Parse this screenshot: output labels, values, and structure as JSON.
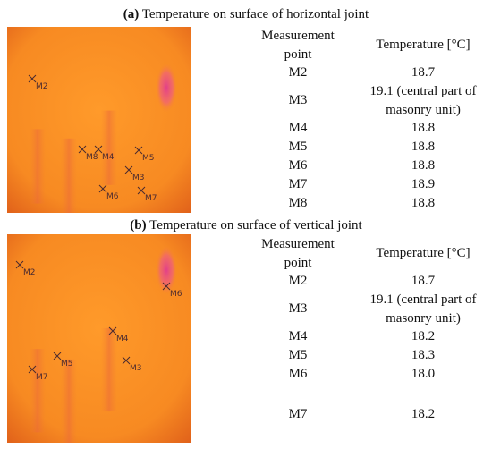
{
  "panels": [
    {
      "label": "(a)",
      "title": "Temperature on surface of horizontal joint",
      "image_markers": [
        "M2",
        "M8",
        "M4",
        "M5",
        "M3",
        "M6",
        "M7"
      ],
      "table": {
        "header": [
          "Measurement point",
          "Temperature [°C]"
        ],
        "rows": [
          [
            "M2",
            "18.7"
          ],
          [
            "M3",
            "19.1 (central part of masonry unit)"
          ],
          [
            "M4",
            "18.8"
          ],
          [
            "M5",
            "18.8"
          ],
          [
            "M6",
            "18.8"
          ],
          [
            "M7",
            "18.9"
          ],
          [
            "M8",
            "18.8"
          ]
        ]
      }
    },
    {
      "label": "(b)",
      "title": "Temperature on surface of vertical joint",
      "image_markers": [
        "M2",
        "M6",
        "M4",
        "M5",
        "M3",
        "M7"
      ],
      "table": {
        "header": [
          "Measurement point",
          "Temperature [°C]"
        ],
        "rows": [
          [
            "M2",
            "18.7"
          ],
          [
            "M3",
            "19.1 (central part of masonry unit)"
          ],
          [
            "M4",
            "18.2"
          ],
          [
            "M5",
            "18.3"
          ],
          [
            "M6",
            "18.0"
          ],
          [
            "M7",
            "18.2"
          ]
        ]
      }
    }
  ]
}
